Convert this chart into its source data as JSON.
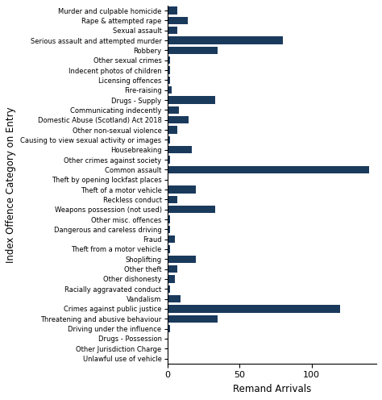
{
  "categories": [
    "Murder and culpable homicide",
    "Rape & attempted rape",
    "Sexual assault",
    "Serious assault and attempted murder",
    "Robbery",
    "Other sexual crimes",
    "Indecent photos of children",
    "Licensing offences",
    "Fire-raising",
    "Drugs - Supply",
    "Communicating indecently",
    "Domestic Abuse (Scotland) Act 2018",
    "Other non-sexual violence",
    "Causing to view sexual activity or images",
    "Housebreaking",
    "Other crimes against society",
    "Common assault",
    "Theft by opening lockfast places",
    "Theft of a motor vehicle",
    "Reckless conduct",
    "Weapons possession (not used)",
    "Other misc. offences",
    "Dangerous and careless driving",
    "Fraud",
    "Theft from a motor vehicle",
    "Shoplifting",
    "Other theft",
    "Other dishonesty",
    "Racially aggravated conduct",
    "Vandalism",
    "Crimes against public justice",
    "Threatening and abusive behaviour",
    "Driving under the influence",
    "Drugs - Possession",
    "Other Jurisdiction Charge",
    "Unlawful use of vehicle"
  ],
  "values": [
    7,
    14,
    7,
    80,
    35,
    2,
    2,
    2,
    3,
    33,
    8,
    15,
    7,
    2,
    17,
    2,
    140,
    1,
    20,
    7,
    33,
    2,
    2,
    5,
    2,
    20,
    7,
    5,
    2,
    9,
    120,
    35,
    2,
    1,
    1,
    1
  ],
  "bar_color": "#1a3a5c",
  "xlabel": "Remand Arrivals",
  "ylabel": "Index Offence Category on Entry",
  "xlim": [
    0,
    145
  ],
  "xticks": [
    0,
    50,
    100
  ],
  "background_color": "#ffffff",
  "label_fontsize": 6.0,
  "axis_label_fontsize": 8.5,
  "tick_fontsize": 8
}
